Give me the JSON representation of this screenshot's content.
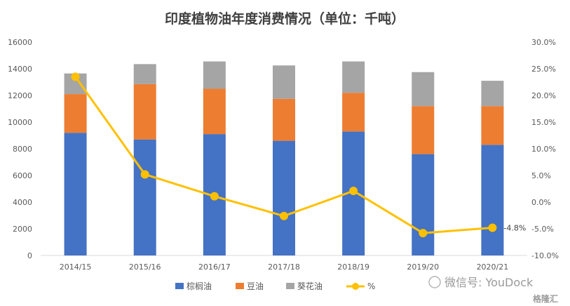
{
  "chart_data": {
    "type": "bar",
    "stacked": true,
    "title": "印度植物油年度消费情况（单位：千吨）",
    "categories": [
      "2014/15",
      "2015/16",
      "2016/17",
      "2017/18",
      "2018/19",
      "2019/20",
      "2020/21"
    ],
    "series": [
      {
        "name": "棕榈油",
        "values": [
          9200,
          8700,
          9100,
          8600,
          9300,
          7600,
          8300
        ],
        "color": "#4472C4"
      },
      {
        "name": "豆油",
        "values": [
          2900,
          4150,
          3400,
          3150,
          2900,
          3600,
          2900
        ],
        "color": "#ED7D31"
      },
      {
        "name": "葵花油",
        "values": [
          1550,
          1500,
          2050,
          2500,
          2350,
          2550,
          1900
        ],
        "color": "#A5A5A5"
      }
    ],
    "line_series": {
      "name": "%",
      "values": [
        23.5,
        5.2,
        1.1,
        -2.6,
        2.1,
        -5.8,
        -4.8
      ],
      "color": "#FFC000",
      "axis": "right"
    },
    "y_left": {
      "min": 0,
      "max": 16000,
      "step": 2000,
      "ticks": [
        "0",
        "2000",
        "4000",
        "6000",
        "8000",
        "10000",
        "12000",
        "14000",
        "16000"
      ]
    },
    "y_right": {
      "min": -10,
      "max": 30,
      "step": 5,
      "ticks": [
        "-10.0%",
        "-5.0%",
        "0.0%",
        "5.0%",
        "10.0%",
        "15.0%",
        "20.0%",
        "25.0%",
        "30.0%"
      ]
    },
    "annotations": [
      {
        "category": "2020/21",
        "text": "-4.8%"
      }
    ],
    "legend": {
      "position": "bottom",
      "items": [
        "棕榈油",
        "豆油",
        "葵花油",
        "%"
      ]
    },
    "grid": false
  },
  "watermark": {
    "text": "微信号: YouDock",
    "brand": "格隆汇"
  }
}
